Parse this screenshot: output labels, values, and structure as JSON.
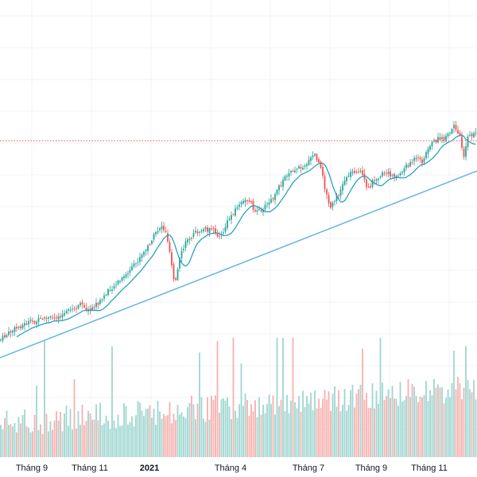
{
  "chart_data": {
    "type": "candlestick",
    "grid": true,
    "legend": "none",
    "colors": {
      "up": "#26a69a",
      "down": "#ef5350",
      "up_volume": "#9fd6d0",
      "down_volume": "#f5b1af",
      "moving_average": "#1a9bbf",
      "trendline": "#5ab0e3",
      "resistance_line": "#ef5350",
      "grid": "#f0f3fa",
      "text": "#131722"
    },
    "x_range": [
      0,
      600
    ],
    "y_range": [
      0,
      600
    ],
    "x_ticks": [
      {
        "label": "Tháng 9",
        "x": 40,
        "bold": false
      },
      {
        "label": "Tháng 11",
        "x": 113,
        "bold": false
      },
      {
        "label": "2021",
        "x": 188,
        "bold": true
      },
      {
        "label": "Tháng 4",
        "x": 290,
        "bold": false
      },
      {
        "label": "Tháng 7",
        "x": 388,
        "bold": false
      },
      {
        "label": "Tháng 9",
        "x": 467,
        "bold": false
      },
      {
        "label": "Tháng 11",
        "x": 540,
        "bold": false
      }
    ],
    "price_anchors": [
      [
        0,
        428
      ],
      [
        10,
        420
      ],
      [
        20,
        413
      ],
      [
        35,
        406
      ],
      [
        55,
        402
      ],
      [
        75,
        397
      ],
      [
        90,
        390
      ],
      [
        105,
        382
      ],
      [
        110,
        392
      ],
      [
        125,
        380
      ],
      [
        140,
        362
      ],
      [
        155,
        350
      ],
      [
        170,
        333
      ],
      [
        185,
        312
      ],
      [
        195,
        295
      ],
      [
        203,
        283
      ],
      [
        210,
        296
      ],
      [
        215,
        325
      ],
      [
        220,
        358
      ],
      [
        227,
        322
      ],
      [
        236,
        300
      ],
      [
        247,
        292
      ],
      [
        257,
        288
      ],
      [
        268,
        290
      ],
      [
        278,
        298
      ],
      [
        288,
        275
      ],
      [
        300,
        258
      ],
      [
        313,
        250
      ],
      [
        322,
        268
      ],
      [
        333,
        260
      ],
      [
        345,
        248
      ],
      [
        355,
        228
      ],
      [
        365,
        214
      ],
      [
        377,
        211
      ],
      [
        388,
        204
      ],
      [
        395,
        193
      ],
      [
        403,
        210
      ],
      [
        410,
        242
      ],
      [
        415,
        263
      ],
      [
        425,
        246
      ],
      [
        435,
        223
      ],
      [
        445,
        214
      ],
      [
        455,
        218
      ],
      [
        462,
        240
      ],
      [
        470,
        226
      ],
      [
        480,
        219
      ],
      [
        490,
        219
      ],
      [
        500,
        222
      ],
      [
        512,
        208
      ],
      [
        522,
        200
      ],
      [
        532,
        203
      ],
      [
        540,
        183
      ],
      [
        550,
        175
      ],
      [
        560,
        175
      ],
      [
        566,
        167
      ],
      [
        572,
        158
      ],
      [
        578,
        168
      ],
      [
        583,
        197
      ],
      [
        588,
        174
      ],
      [
        596,
        168
      ]
    ],
    "trendline": {
      "from": [
        0,
        450
      ],
      "to": [
        600,
        215
      ]
    },
    "resistance_line": {
      "y": 177
    }
  }
}
